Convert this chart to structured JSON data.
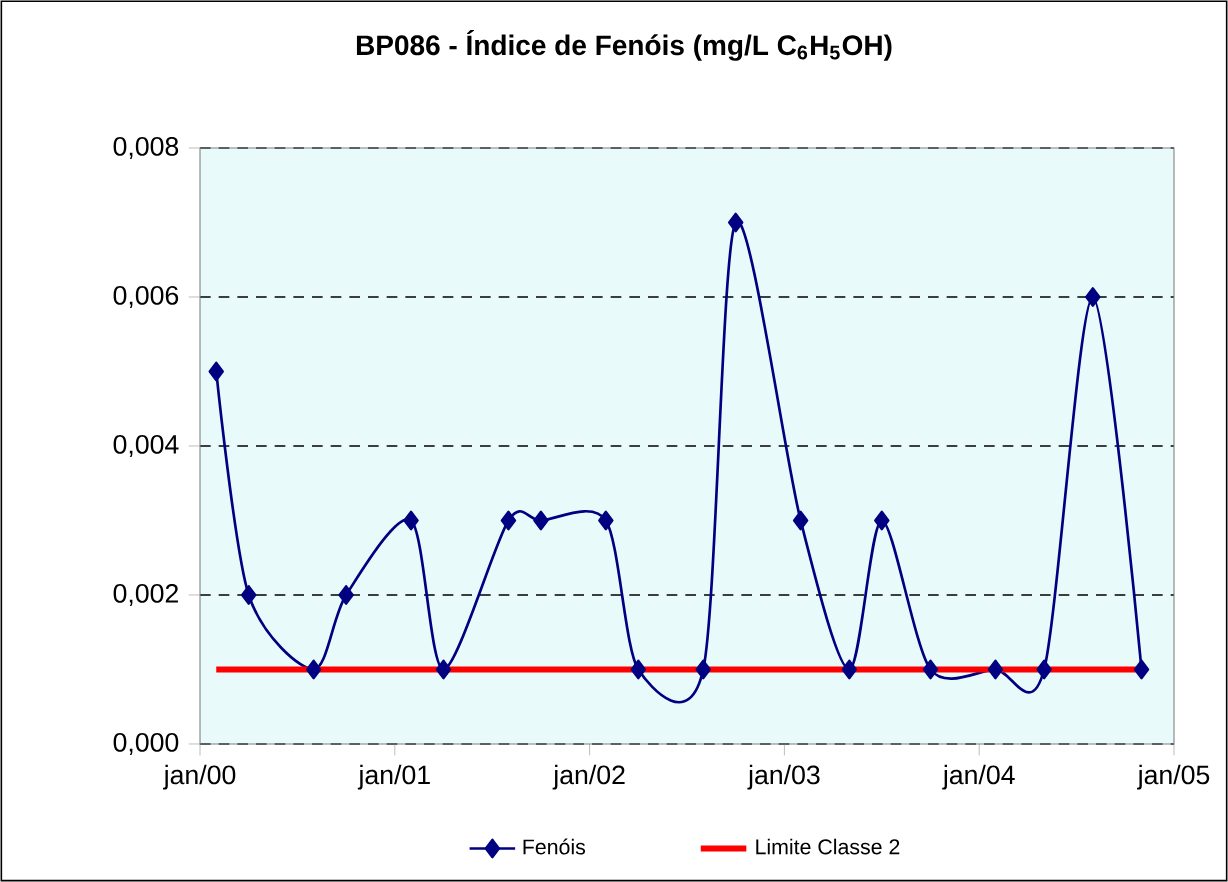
{
  "chart_data": {
    "type": "line",
    "title": "**BP086 - Índice de Fenóis  (mg/L C$_{6}$H$_{5}$OH)**",
    "x": [
      "2000-02",
      "2000-04",
      "2000-08",
      "2000-10",
      "2001-02",
      "2001-04",
      "2001-08",
      "2001-10",
      "2002-02",
      "2002-04",
      "2002-08",
      "2002-10",
      "2003-02",
      "2003-05",
      "2003-07",
      "2003-10",
      "2004-02",
      "2004-05",
      "2004-08",
      "2004-11"
    ],
    "series": [
      {
        "name": "Fenóis",
        "color": "#000080",
        "marker": "diamond",
        "values": [
          0.005,
          0.002,
          0.001,
          0.002,
          0.003,
          0.001,
          0.003,
          0.003,
          0.003,
          0.001,
          0.001,
          0.007,
          0.003,
          0.001,
          0.003,
          0.001,
          0.001,
          0.001,
          0.006,
          0.001
        ]
      },
      {
        "name": "Limite Classe 2",
        "color": "#ff0000",
        "marker": "none",
        "x": [
          "2000-02",
          "2004-11"
        ],
        "values": [
          0.001,
          0.001
        ]
      }
    ],
    "xlim": [
      "2000-01",
      "2005-01"
    ],
    "xticks": [
      {
        "value": "2000-01",
        "label": "jan/00"
      },
      {
        "value": "2001-01",
        "label": "jan/01"
      },
      {
        "value": "2002-01",
        "label": "jan/02"
      },
      {
        "value": "2003-01",
        "label": "jan/03"
      },
      {
        "value": "2004-01",
        "label": "jan/04"
      },
      {
        "value": "2005-01",
        "label": "jan/05"
      }
    ],
    "ylim": [
      0,
      0.008
    ],
    "yticks": [
      {
        "value": 0,
        "label": "0,000"
      },
      {
        "value": 0.002,
        "label": "0,002"
      },
      {
        "value": 0.004,
        "label": "0,004"
      },
      {
        "value": 0.006,
        "label": "0,006"
      },
      {
        "value": 0.008,
        "label": "0,008"
      }
    ],
    "grid": "y",
    "legend": "bottom",
    "line_style": "solid"
  }
}
